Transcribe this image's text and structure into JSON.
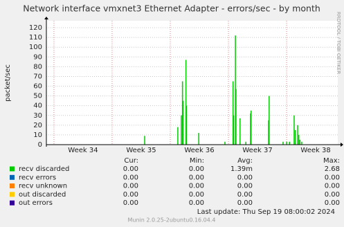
{
  "chart_data": {
    "type": "bar",
    "title": "Network interface vmxnet3 Ethernet Adapter - errors/sec - by month",
    "y_label": "packet/sec",
    "ylim": [
      0,
      125
    ],
    "yticks": [
      0,
      10,
      20,
      30,
      40,
      50,
      60,
      70,
      80,
      90,
      100,
      110,
      120
    ],
    "xlim": [
      33.87,
      38.88
    ],
    "xticks": [
      {
        "value": 34.5,
        "label": "Week 34"
      },
      {
        "value": 35.5,
        "label": "Week 35"
      },
      {
        "value": 36.5,
        "label": "Week 36"
      },
      {
        "value": 37.5,
        "label": "Week 37"
      },
      {
        "value": 38.5,
        "label": "Week 38"
      }
    ],
    "xgrid": [
      34,
      35,
      36,
      37,
      38
    ],
    "series": [
      {
        "name": "recv discarded",
        "color": "#00cc00",
        "x": [
          35.56,
          36.13,
          36.19,
          36.21,
          36.22,
          36.27,
          36.28,
          36.49,
          36.94,
          37.08,
          37.09,
          37.12,
          37.13,
          37.2,
          37.3,
          37.38,
          37.39,
          37.69,
          37.7,
          37.94,
          38.0,
          38.05,
          38.13,
          38.15,
          38.19,
          38.21,
          38.23,
          38.26
        ],
        "values": [
          9,
          18,
          30,
          65,
          45,
          87,
          40,
          12,
          3,
          65,
          30,
          112,
          57,
          27,
          3,
          32,
          35,
          25,
          50,
          3,
          3,
          3,
          30,
          15,
          20,
          10,
          5,
          3
        ]
      },
      {
        "name": "recv errors",
        "color": "#0066b3",
        "x": [],
        "values": []
      },
      {
        "name": "recv unknown",
        "color": "#ff8000",
        "x": [],
        "values": []
      },
      {
        "name": "out discarded",
        "color": "#ffcc00",
        "x": [],
        "values": []
      },
      {
        "name": "out errors",
        "color": "#330099",
        "x": [],
        "values": []
      }
    ],
    "stats_headers": [
      "Cur:",
      "Min:",
      "Avg:",
      "Max:"
    ],
    "stats": [
      [
        "0.00",
        "0.00",
        "1.39m",
        "2.68"
      ],
      [
        "0.00",
        "0.00",
        "0.00",
        "0.00"
      ],
      [
        "0.00",
        "0.00",
        "0.00",
        "0.00"
      ],
      [
        "0.00",
        "0.00",
        "0.00",
        "0.00"
      ],
      [
        "0.00",
        "0.00",
        "0.00",
        "0.00"
      ]
    ],
    "last_update": "Last update:  Thu Sep 19 08:00:02 2024",
    "footer": "Munin 2.0.25-2ubuntu0.16.04.4",
    "watermark": "RRDTOOL / TOBI OETIKER"
  }
}
